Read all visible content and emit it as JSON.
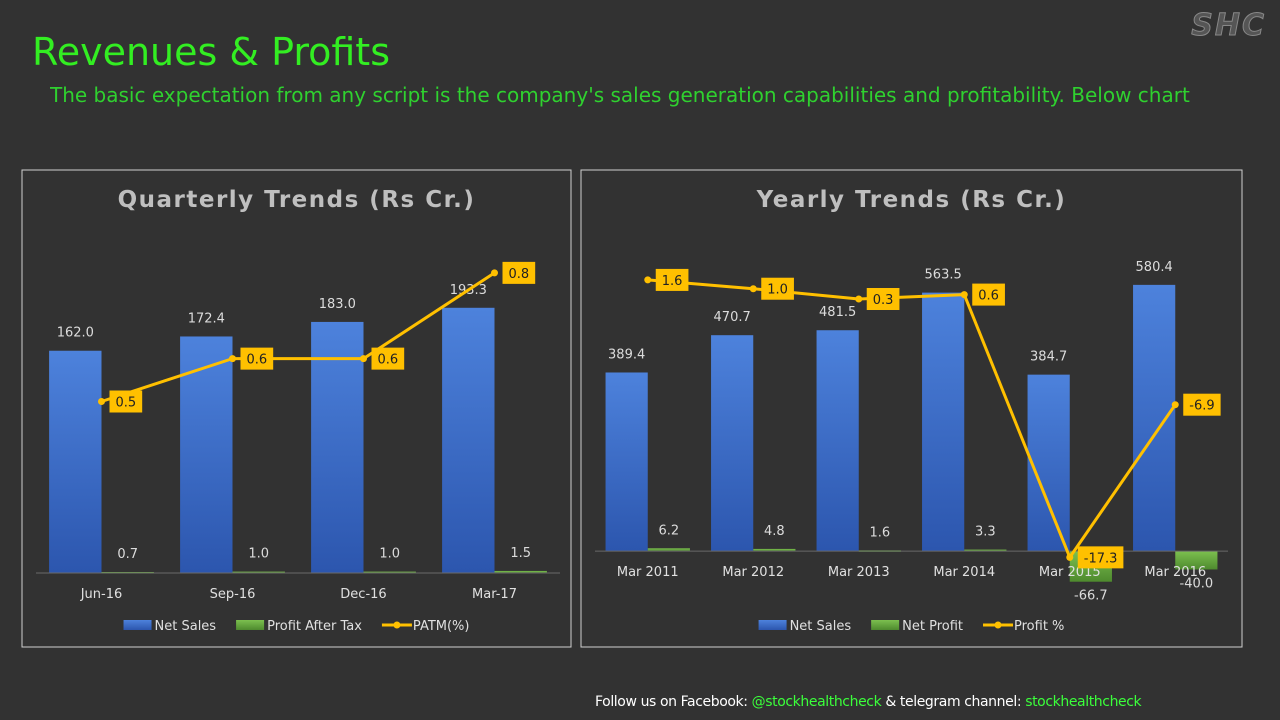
{
  "header": {
    "title": "Revenues & Profits",
    "subtitle": "The basic expectation from any script is the company's sales generation capabilities and profitability. Below chart",
    "logo": "SHC"
  },
  "footer": {
    "parts": [
      "Follow us on Facebook: ",
      "@stockhealthcheck",
      " & telegram channel: ",
      "stockhealthcheck"
    ]
  },
  "chart_data": [
    {
      "type": "bar",
      "title": "Quarterly Trends (Rs Cr.)",
      "categories": [
        "Jun-16",
        "Sep-16",
        "Dec-16",
        "Mar-17"
      ],
      "series": [
        {
          "name": "Net Sales",
          "color": "#4472c4",
          "values": [
            162.0,
            172.4,
            183.0,
            193.3
          ],
          "value_labels": [
            "162.0",
            "172.4",
            "183.0",
            "193.3"
          ]
        },
        {
          "name": "Profit After Tax",
          "color": "#70ad47",
          "values": [
            0.7,
            1.0,
            1.0,
            1.5
          ],
          "value_labels": [
            "0.7",
            "1.0",
            "1.0",
            "1.5"
          ]
        },
        {
          "name": "PATM(%)",
          "color": "#ffc000",
          "type": "line",
          "axis": "y2",
          "values": [
            0.5,
            0.6,
            0.6,
            0.8
          ]
        }
      ],
      "ylim": [
        0,
        250
      ],
      "y2lim": [
        0.1,
        0.9
      ],
      "legend": "bottom"
    },
    {
      "type": "bar",
      "title": "Yearly Trends (Rs Cr.)",
      "categories": [
        "Mar 2011",
        "Mar 2012",
        "Mar 2013",
        "Mar 2014",
        "Mar 2015",
        "Mar 2016"
      ],
      "series": [
        {
          "name": "Net Sales",
          "color": "#4472c4",
          "values": [
            389.4,
            470.7,
            481.5,
            563.5,
            384.7,
            580.4
          ]
        },
        {
          "name": "Net Profit",
          "color": "#70ad47",
          "values": [
            6.2,
            4.8,
            1.6,
            3.3,
            -66.7,
            -40.0
          ],
          "value_labels": [
            "6.2",
            "4.8",
            "1.6",
            "3.3",
            "-66.7",
            "-40.0"
          ]
        },
        {
          "name": "Profit %",
          "color": "#ffc000",
          "type": "line",
          "axis": "y2",
          "values": [
            1.6,
            1.0,
            0.3,
            0.6,
            -17.3,
            -6.9
          ],
          "value_labels": [
            "1.6",
            "1.0",
            "0.3",
            "0.6",
            "-17.3",
            "-6.9"
          ]
        }
      ],
      "ylim": [
        -100,
        700
      ],
      "y2lim": [
        -20,
        5
      ],
      "legend": "bottom"
    }
  ]
}
